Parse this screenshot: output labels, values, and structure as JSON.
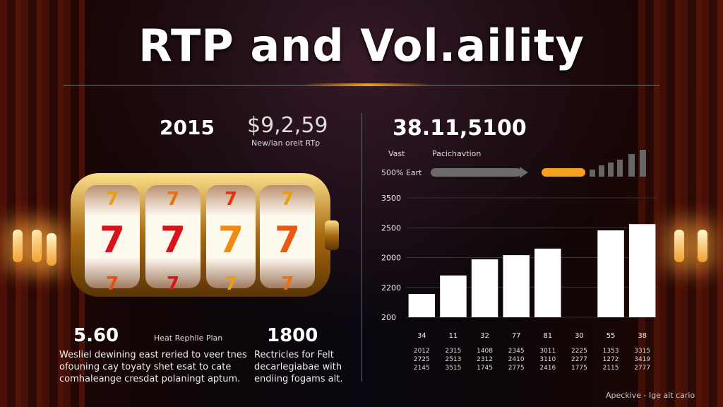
{
  "header": {
    "title": "RTP and Vol.aility"
  },
  "left": {
    "year": "2015",
    "amount": "$9,2,59",
    "amount_caption": "New/ian oreit RTp",
    "stat1": {
      "value": "5.60",
      "label": "Heat Rephlie Plan",
      "text": [
        "Wesliel dewining east reried to veer tnes",
        "ofouning cay toyaty shet esat to cate",
        "comhaleange cresdat polaningt aptum."
      ]
    },
    "stat2": {
      "value": "1800",
      "text": [
        "Rectricles for Felt",
        "decarlegiabae with",
        "endiing fogams alt."
      ]
    }
  },
  "right": {
    "headline": "38.11,5100",
    "label1": "Vast",
    "label2": "Pacichavtion",
    "bar_label": "500% Eart"
  },
  "chart_data": {
    "type": "bar",
    "color": "#ffffff",
    "categories": [
      "34",
      "11",
      "32",
      "77",
      "81",
      "30",
      "55",
      "38"
    ],
    "values": [
      0.78,
      1.4,
      1.94,
      2.08,
      2.3,
      null,
      2.91,
      3.12
    ],
    "ylim": [
      0,
      4
    ],
    "yticks": [
      {
        "value": 4,
        "label": "3500"
      },
      {
        "value": 3,
        "label": "2500"
      },
      {
        "value": 2,
        "label": "2000"
      },
      {
        "value": 1,
        "label": "2200"
      },
      {
        "value": 0,
        "label": "200"
      }
    ],
    "grid": true
  },
  "table": {
    "rows": [
      [
        "2012",
        "2315",
        "1408",
        "2345",
        "3011",
        "2225",
        "1353",
        "3315"
      ],
      [
        "2725",
        "2513",
        "2312",
        "2410",
        "3110",
        "2277",
        "1272",
        "3419"
      ],
      [
        "2145",
        "3515",
        "1745",
        "2775",
        "2416",
        "1775",
        "2115",
        "2777"
      ]
    ]
  },
  "footer": {
    "text": "Apeckive - Ige ait cario"
  }
}
